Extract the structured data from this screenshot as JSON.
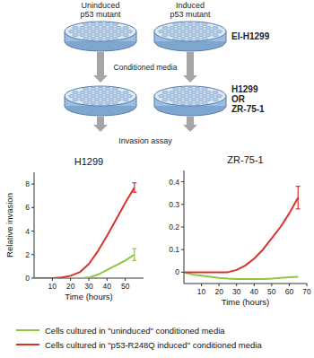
{
  "diagram": {
    "source_labels": [
      [
        "Uninduced",
        "p53 mutant"
      ],
      [
        "Induced",
        "p53 mutant"
      ]
    ],
    "source_cells": "EI-H1299",
    "transfer": "Conditioned media",
    "target_cells": [
      "H1299",
      "OR",
      "ZR-75-1"
    ],
    "assay": "Invasion assay"
  },
  "chart_data": [
    {
      "type": "line",
      "title": "H1299",
      "x_label": "Time (hours)",
      "y_label": "Relative invasion",
      "x": [
        0,
        5,
        10,
        15,
        20,
        25,
        30,
        35,
        40,
        45,
        50,
        55
      ],
      "xlim": [
        0,
        60
      ],
      "xticks": [
        10,
        20,
        30,
        40,
        50
      ],
      "ylim": [
        0,
        9
      ],
      "yticks": [
        0,
        2,
        4,
        6,
        8
      ],
      "grid": false,
      "legend": "bottom",
      "series": [
        {
          "name": "Cells cultured in \"uninduced\" conditioned media",
          "color": "#8dc63f",
          "values": [
            0,
            0,
            0,
            0,
            0,
            0,
            0.05,
            0.3,
            0.7,
            1.1,
            1.5,
            2.0
          ],
          "errors": [
            null,
            null,
            null,
            null,
            null,
            null,
            null,
            null,
            null,
            null,
            null,
            0.5
          ]
        },
        {
          "name": "Cells cultured in \"p53-R248Q induced\" conditioned media",
          "color": "#d9312b",
          "values": [
            0,
            0,
            0,
            0.05,
            0.2,
            0.5,
            1.2,
            2.3,
            3.6,
            5.0,
            6.4,
            7.7
          ],
          "errors": [
            null,
            null,
            null,
            null,
            null,
            null,
            null,
            null,
            null,
            null,
            null,
            0.4
          ]
        }
      ]
    },
    {
      "type": "line",
      "title": "ZR-75-1",
      "x_label": "Time (hours)",
      "x": [
        0,
        5,
        10,
        15,
        20,
        25,
        30,
        35,
        40,
        45,
        50,
        55,
        60,
        65
      ],
      "xlim": [
        0,
        70
      ],
      "xticks": [
        10,
        20,
        30,
        40,
        50,
        60,
        70
      ],
      "ylim": [
        -0.05,
        0.45
      ],
      "yticks": [
        0,
        0.1,
        0.2,
        0.3,
        0.4
      ],
      "grid": false,
      "series": [
        {
          "color": "#8dc63f",
          "values": [
            0,
            -0.01,
            -0.015,
            -0.02,
            -0.025,
            -0.028,
            -0.03,
            -0.03,
            -0.03,
            -0.03,
            -0.028,
            -0.025,
            -0.022,
            -0.02
          ],
          "errors": [
            null,
            null,
            null,
            null,
            null,
            null,
            null,
            null,
            null,
            null,
            null,
            null,
            null,
            null
          ]
        },
        {
          "color": "#d9312b",
          "values": [
            0,
            0,
            0,
            0,
            0,
            0,
            0.01,
            0.03,
            0.06,
            0.1,
            0.15,
            0.2,
            0.26,
            0.33
          ],
          "errors": [
            null,
            null,
            null,
            null,
            null,
            null,
            null,
            null,
            null,
            null,
            null,
            null,
            null,
            0.05
          ]
        }
      ]
    }
  ]
}
